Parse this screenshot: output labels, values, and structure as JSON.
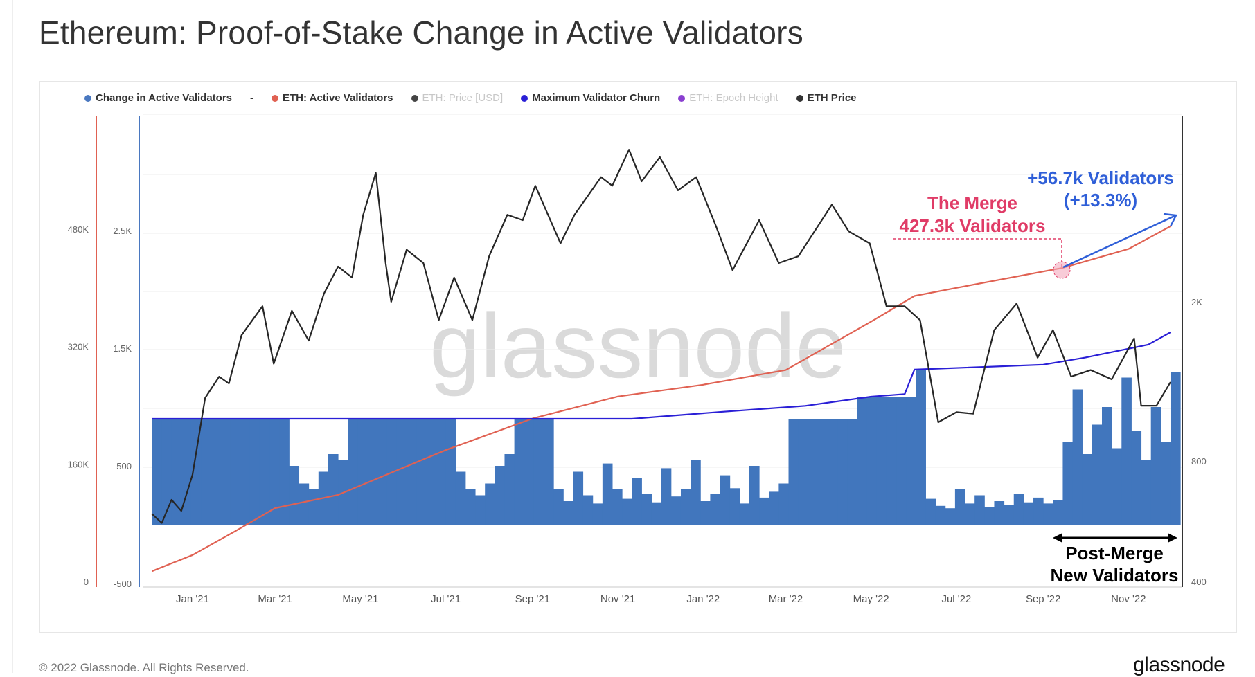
{
  "title": "Ethereum: Proof-of-Stake Change in Active Validators",
  "footer": "© 2022 Glassnode. All Rights Reserved.",
  "logo": "glassnode",
  "watermark": "glassnode",
  "legend": [
    {
      "label": "Change in Active Validators",
      "color": "#4a78c0",
      "faded": false
    },
    {
      "label": "-",
      "color": "",
      "faded": false
    },
    {
      "label": "ETH: Active Validators",
      "color": "#e06152",
      "faded": false
    },
    {
      "label": "ETH: Price [USD]",
      "color": "#444444",
      "faded": true
    },
    {
      "label": "Maximum Validator Churn",
      "color": "#2a1fd6",
      "faded": false
    },
    {
      "label": "ETH: Epoch Height",
      "color": "#8a3fd0",
      "faded": true
    },
    {
      "label": "ETH Price",
      "color": "#333333",
      "faded": false
    }
  ],
  "annotations": {
    "growth_line1": "+56.7k Validators",
    "growth_line2": "(+13.3%)",
    "merge_line1": "The Merge",
    "merge_line2": "427.3k Validators",
    "post_line1": "Post-Merge",
    "post_line2": "New Validators"
  },
  "chart_data": {
    "type": "bar+line",
    "title": "Ethereum: Proof-of-Stake Change in Active Validators",
    "x_ticks": [
      {
        "label": "Jan '21",
        "date": "2021-01-01"
      },
      {
        "label": "Mar '21",
        "date": "2021-03-01"
      },
      {
        "label": "May '21",
        "date": "2021-05-01"
      },
      {
        "label": "Jul '21",
        "date": "2021-07-01"
      },
      {
        "label": "Sep '21",
        "date": "2021-09-01"
      },
      {
        "label": "Nov '21",
        "date": "2021-11-01"
      },
      {
        "label": "Jan '22",
        "date": "2022-01-01"
      },
      {
        "label": "Mar '22",
        "date": "2022-03-01"
      },
      {
        "label": "May '22",
        "date": "2022-05-01"
      },
      {
        "label": "Jul '22",
        "date": "2022-07-01"
      },
      {
        "label": "Sep '22",
        "date": "2022-09-01"
      },
      {
        "label": "Nov '22",
        "date": "2022-11-01"
      }
    ],
    "axes": {
      "validators_axis": {
        "color": "#e06152",
        "ticks": [
          {
            "v": 0,
            "label": "0"
          },
          {
            "v": 160000,
            "label": "160K"
          },
          {
            "v": 320000,
            "label": "320K"
          },
          {
            "v": 480000,
            "label": "480K"
          }
        ]
      },
      "change_axis": {
        "color": "#4a78c0",
        "ticks": [
          {
            "v": -500,
            "label": "-500"
          },
          {
            "v": 500,
            "label": "500"
          },
          {
            "v": 1500,
            "label": "1.5K"
          },
          {
            "v": 2500,
            "label": "2.5K"
          }
        ]
      },
      "price_axis": {
        "scale": "log",
        "ticks": [
          {
            "v": 400,
            "label": "400"
          },
          {
            "v": 800,
            "label": "800"
          },
          {
            "v": 2000,
            "label": "2K"
          }
        ]
      }
    },
    "change_start_week": "2020-12-03",
    "change_weekly": [
      900,
      900,
      900,
      900,
      900,
      900,
      900,
      900,
      900,
      900,
      900,
      900,
      900,
      900,
      500,
      350,
      300,
      450,
      600,
      550,
      900,
      900,
      900,
      900,
      900,
      900,
      900,
      900,
      900,
      900,
      900,
      450,
      300,
      250,
      350,
      500,
      600,
      900,
      900,
      900,
      900,
      300,
      200,
      450,
      250,
      180,
      520,
      300,
      220,
      400,
      260,
      190,
      480,
      240,
      300,
      550,
      200,
      260,
      420,
      310,
      180,
      500,
      230,
      280,
      350,
      900,
      900,
      900,
      900,
      900,
      900,
      900,
      1088,
      1088,
      1088,
      1088,
      1088,
      1088,
      1318,
      220,
      160,
      140,
      300,
      180,
      250,
      150,
      200,
      170,
      260,
      190,
      230,
      180,
      210,
      700,
      1150,
      600,
      850,
      1000,
      650,
      1250,
      800,
      550,
      1000,
      700,
      1300
    ],
    "churn": [
      {
        "date": "2020-12-03",
        "v": 900
      },
      {
        "date": "2021-11-11",
        "v": 900
      },
      {
        "date": "2022-01-15",
        "v": 960
      },
      {
        "date": "2022-03-15",
        "v": 1010
      },
      {
        "date": "2022-05-01",
        "v": 1088
      },
      {
        "date": "2022-05-25",
        "v": 1110
      },
      {
        "date": "2022-06-01",
        "v": 1318
      },
      {
        "date": "2022-09-01",
        "v": 1360
      },
      {
        "date": "2022-10-01",
        "v": 1420
      },
      {
        "date": "2022-11-15",
        "v": 1530
      },
      {
        "date": "2022-12-01",
        "v": 1635
      }
    ],
    "active_validators": [
      {
        "date": "2020-12-03",
        "v": 14000
      },
      {
        "date": "2021-01-01",
        "v": 36000
      },
      {
        "date": "2021-02-01",
        "v": 69000
      },
      {
        "date": "2021-03-01",
        "v": 100000
      },
      {
        "date": "2021-04-15",
        "v": 118000
      },
      {
        "date": "2021-07-01",
        "v": 179000
      },
      {
        "date": "2021-09-01",
        "v": 222000
      },
      {
        "date": "2021-11-01",
        "v": 252000
      },
      {
        "date": "2022-01-01",
        "v": 268000
      },
      {
        "date": "2022-03-01",
        "v": 288000
      },
      {
        "date": "2022-05-01",
        "v": 354000
      },
      {
        "date": "2022-06-01",
        "v": 389000
      },
      {
        "date": "2022-07-01",
        "v": 400000
      },
      {
        "date": "2022-09-15",
        "v": 427300
      },
      {
        "date": "2022-11-01",
        "v": 453000
      },
      {
        "date": "2022-12-01",
        "v": 484000
      }
    ],
    "eth_price": [
      {
        "date": "2020-12-03",
        "v": 590
      },
      {
        "date": "2020-12-10",
        "v": 560
      },
      {
        "date": "2020-12-17",
        "v": 640
      },
      {
        "date": "2020-12-24",
        "v": 600
      },
      {
        "date": "2021-01-01",
        "v": 740
      },
      {
        "date": "2021-01-10",
        "v": 1150
      },
      {
        "date": "2021-01-20",
        "v": 1300
      },
      {
        "date": "2021-01-27",
        "v": 1250
      },
      {
        "date": "2021-02-05",
        "v": 1650
      },
      {
        "date": "2021-02-20",
        "v": 1950
      },
      {
        "date": "2021-02-28",
        "v": 1400
      },
      {
        "date": "2021-03-13",
        "v": 1900
      },
      {
        "date": "2021-03-25",
        "v": 1600
      },
      {
        "date": "2021-04-05",
        "v": 2100
      },
      {
        "date": "2021-04-15",
        "v": 2450
      },
      {
        "date": "2021-04-25",
        "v": 2300
      },
      {
        "date": "2021-05-03",
        "v": 3300
      },
      {
        "date": "2021-05-12",
        "v": 4200
      },
      {
        "date": "2021-05-19",
        "v": 2500
      },
      {
        "date": "2021-05-23",
        "v": 2000
      },
      {
        "date": "2021-06-03",
        "v": 2700
      },
      {
        "date": "2021-06-15",
        "v": 2500
      },
      {
        "date": "2021-06-26",
        "v": 1800
      },
      {
        "date": "2021-07-07",
        "v": 2300
      },
      {
        "date": "2021-07-20",
        "v": 1800
      },
      {
        "date": "2021-08-01",
        "v": 2600
      },
      {
        "date": "2021-08-14",
        "v": 3300
      },
      {
        "date": "2021-08-25",
        "v": 3200
      },
      {
        "date": "2021-09-03",
        "v": 3900
      },
      {
        "date": "2021-09-21",
        "v": 2800
      },
      {
        "date": "2021-10-01",
        "v": 3300
      },
      {
        "date": "2021-10-20",
        "v": 4100
      },
      {
        "date": "2021-10-28",
        "v": 3900
      },
      {
        "date": "2021-11-09",
        "v": 4800
      },
      {
        "date": "2021-11-18",
        "v": 4000
      },
      {
        "date": "2021-12-01",
        "v": 4600
      },
      {
        "date": "2021-12-14",
        "v": 3800
      },
      {
        "date": "2021-12-27",
        "v": 4100
      },
      {
        "date": "2022-01-10",
        "v": 3100
      },
      {
        "date": "2022-01-22",
        "v": 2400
      },
      {
        "date": "2022-02-10",
        "v": 3200
      },
      {
        "date": "2022-02-24",
        "v": 2500
      },
      {
        "date": "2022-03-10",
        "v": 2600
      },
      {
        "date": "2022-04-03",
        "v": 3500
      },
      {
        "date": "2022-04-15",
        "v": 3000
      },
      {
        "date": "2022-04-30",
        "v": 2800
      },
      {
        "date": "2022-05-12",
        "v": 1950
      },
      {
        "date": "2022-05-25",
        "v": 1950
      },
      {
        "date": "2022-06-05",
        "v": 1800
      },
      {
        "date": "2022-06-18",
        "v": 1000
      },
      {
        "date": "2022-07-01",
        "v": 1060
      },
      {
        "date": "2022-07-13",
        "v": 1050
      },
      {
        "date": "2022-07-28",
        "v": 1700
      },
      {
        "date": "2022-08-13",
        "v": 1980
      },
      {
        "date": "2022-08-28",
        "v": 1450
      },
      {
        "date": "2022-09-08",
        "v": 1700
      },
      {
        "date": "2022-09-21",
        "v": 1300
      },
      {
        "date": "2022-10-05",
        "v": 1350
      },
      {
        "date": "2022-10-20",
        "v": 1280
      },
      {
        "date": "2022-11-05",
        "v": 1620
      },
      {
        "date": "2022-11-10",
        "v": 1100
      },
      {
        "date": "2022-11-21",
        "v": 1100
      },
      {
        "date": "2022-12-01",
        "v": 1260
      }
    ],
    "merge_date": "2022-09-15",
    "post_merge_range": [
      "2022-09-10",
      "2022-12-01"
    ]
  }
}
